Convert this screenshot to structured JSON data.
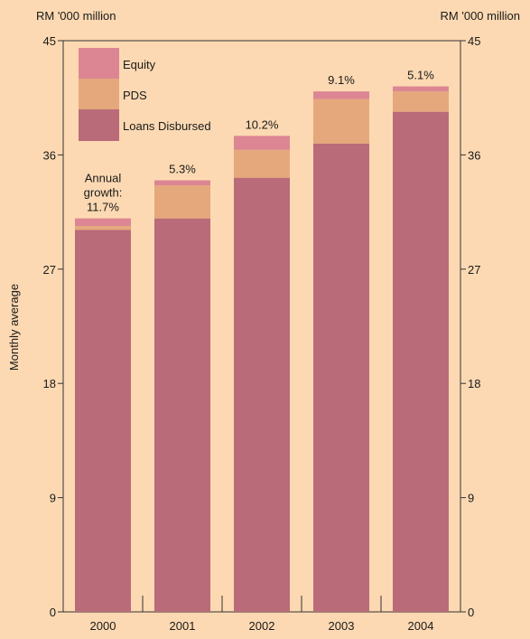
{
  "chart_data": {
    "type": "bar",
    "stacked": true,
    "unit_left": "RM '000 million",
    "unit_right": "RM '000 million",
    "ylabel": "Monthly average",
    "ylim": [
      0,
      45
    ],
    "yticks": [
      "0",
      "9",
      "18",
      "27",
      "36",
      "45"
    ],
    "categories": [
      "2000",
      "2001",
      "2002",
      "2003",
      "2004"
    ],
    "series": [
      {
        "name": "Loans Disbursed",
        "color": "#b96b79",
        "values": [
          30.1,
          31.0,
          34.2,
          36.9,
          39.4
        ]
      },
      {
        "name": "PDS",
        "color": "#e5a87c",
        "values": [
          0.3,
          2.6,
          2.2,
          3.5,
          1.6
        ]
      },
      {
        "name": "Equity",
        "color": "#dc8694",
        "values": [
          0.6,
          0.4,
          1.1,
          0.6,
          0.4
        ]
      }
    ],
    "growth_labels": [
      "Annual\ngrowth:\n11.7%",
      "5.3%",
      "10.2%",
      "9.1%",
      "5.1%"
    ],
    "legend_order": [
      "Equity",
      "PDS",
      "Loans Disbursed"
    ],
    "legend_position": "top-left",
    "grid": false
  }
}
